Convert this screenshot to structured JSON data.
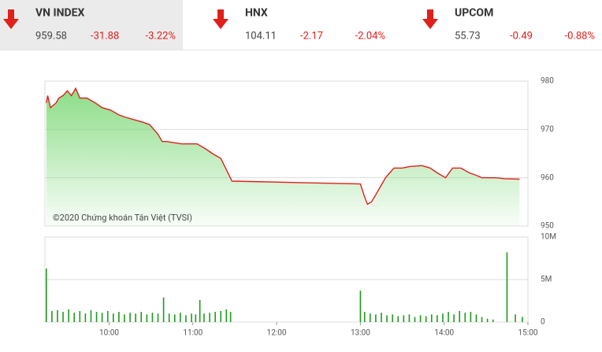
{
  "header": {
    "indices": [
      {
        "name": "VN INDEX",
        "price": "959.58",
        "change": "-31.88",
        "percent": "-3.22%"
      },
      {
        "name": "HNX",
        "price": "104.11",
        "change": "-2.17",
        "percent": "-2.04%"
      },
      {
        "name": "UPCOM",
        "price": "55.73",
        "change": "-0.49",
        "percent": "-0.88%"
      }
    ]
  },
  "chart_data": [
    {
      "type": "area",
      "annotation": "©2020 Chứng khoán Tân Việt (TVSI)",
      "color": "#e0201b",
      "area_color": "#7fd97a",
      "x": [
        555,
        556,
        558,
        562,
        564,
        567,
        570,
        573,
        576,
        579,
        584,
        590,
        595,
        601,
        607,
        612,
        618,
        624,
        629,
        635,
        638,
        641,
        652,
        663,
        669,
        674,
        680,
        688,
        780,
        783,
        785,
        788,
        792,
        795,
        798,
        801,
        804,
        810,
        815,
        824,
        830,
        835,
        841,
        846,
        852,
        858,
        863,
        867,
        872,
        877,
        883,
        894
      ],
      "values": [
        975.5,
        977,
        974.5,
        975.5,
        976.5,
        977,
        978,
        977,
        978.5,
        976.5,
        976.5,
        975.5,
        974.5,
        974,
        973,
        972.5,
        972,
        971.5,
        971,
        969,
        967.5,
        967.5,
        967,
        967,
        966,
        965,
        964,
        959.3,
        958.7,
        956,
        954.5,
        955,
        957,
        958.5,
        960,
        961,
        962,
        962,
        962.3,
        962.5,
        962,
        961,
        960,
        962,
        962,
        961,
        960.5,
        960,
        960,
        960,
        959.8,
        959.7
      ],
      "xlim": [
        554,
        900
      ],
      "ylim": [
        950,
        980
      ],
      "yticks": [
        950,
        960,
        970,
        980
      ],
      "grid": true
    },
    {
      "type": "bar",
      "color": "#1f9a1f",
      "x": [
        555,
        559,
        563,
        567,
        571,
        575,
        579,
        583,
        587,
        591,
        595,
        599,
        603,
        607,
        611,
        615,
        619,
        623,
        627,
        631,
        635,
        639,
        643,
        647,
        651,
        655,
        659,
        662,
        665,
        668,
        672,
        676,
        680,
        684,
        687,
        780,
        783,
        787,
        791,
        795,
        799,
        803,
        807,
        811,
        815,
        819,
        823,
        827,
        831,
        835,
        839,
        843,
        847,
        851,
        855,
        859,
        863,
        867,
        871,
        875,
        885,
        891,
        896
      ],
      "values": [
        6300000,
        1300000,
        1400000,
        1200000,
        1500000,
        1100000,
        1300000,
        1000000,
        1400000,
        1200000,
        1100000,
        1300000,
        1000000,
        1200000,
        900000,
        1100000,
        1000000,
        1200000,
        900000,
        1100000,
        1000000,
        2900000,
        1000000,
        900000,
        1100000,
        800000,
        1000000,
        900000,
        2600000,
        1000000,
        1100000,
        1200000,
        1300000,
        1500000,
        1200000,
        3700000,
        1200000,
        1000000,
        900000,
        1100000,
        800000,
        900000,
        700000,
        800000,
        900000,
        600000,
        800000,
        700000,
        900000,
        800000,
        1000000,
        1200000,
        900000,
        1300000,
        1100000,
        1200000,
        900000,
        600000,
        400000,
        300000,
        8200000,
        900000,
        600000
      ],
      "xlim": [
        554,
        900
      ],
      "ylim": [
        0,
        10000000
      ],
      "yticks": [
        0,
        {
          "value": 5000000,
          "label": "5M"
        },
        {
          "value": 10000000,
          "label": "10M"
        }
      ],
      "xticks": [
        {
          "value": 600,
          "label": "10:00"
        },
        {
          "value": 660,
          "label": "11:00"
        },
        {
          "value": 720,
          "label": "12:00"
        },
        {
          "value": 780,
          "label": "13:00"
        },
        {
          "value": 840,
          "label": "14:00"
        },
        {
          "value": 900,
          "label": "15:00"
        }
      ],
      "grid": true
    }
  ]
}
